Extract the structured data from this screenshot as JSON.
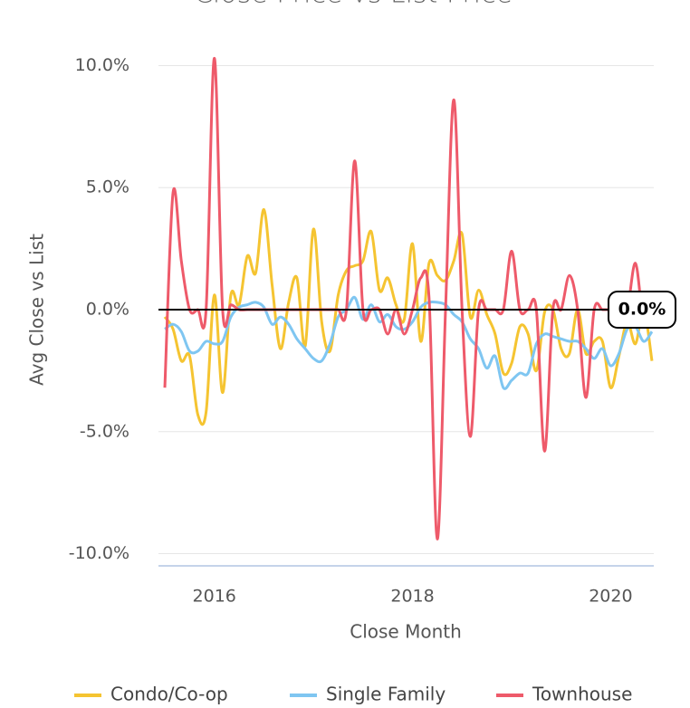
{
  "chart_data": {
    "type": "line",
    "title": "Close Price vs List Price",
    "xlabel": "Close Month",
    "ylabel": "Avg Close vs List",
    "x": [
      "2015-07",
      "2015-08",
      "2015-09",
      "2015-10",
      "2015-11",
      "2015-12",
      "2016-01",
      "2016-02",
      "2016-03",
      "2016-04",
      "2016-05",
      "2016-06",
      "2016-07",
      "2016-08",
      "2016-09",
      "2016-10",
      "2016-11",
      "2016-12",
      "2017-01",
      "2017-02",
      "2017-03",
      "2017-04",
      "2017-05",
      "2017-06",
      "2017-07",
      "2017-08",
      "2017-09",
      "2017-10",
      "2017-11",
      "2017-12",
      "2018-01",
      "2018-02",
      "2018-03",
      "2018-04",
      "2018-05",
      "2018-06",
      "2018-07",
      "2018-08",
      "2018-09",
      "2018-10",
      "2018-11",
      "2018-12",
      "2019-01",
      "2019-02",
      "2019-03",
      "2019-04",
      "2019-05",
      "2019-06",
      "2019-07",
      "2019-08",
      "2019-09",
      "2019-10",
      "2019-11",
      "2019-12",
      "2020-01",
      "2020-02",
      "2020-03",
      "2020-04",
      "2020-05",
      "2020-06"
    ],
    "series": [
      {
        "name": "Condo/Co-op",
        "color": "#f5c431",
        "values": [
          -0.3,
          -0.8,
          -2.1,
          -1.9,
          -4.3,
          -4.2,
          0.6,
          -3.4,
          0.6,
          0.2,
          2.2,
          1.5,
          4.1,
          1.0,
          -1.6,
          0.3,
          1.3,
          -1.5,
          3.3,
          -0.5,
          -1.7,
          0.6,
          1.6,
          1.8,
          2.0,
          3.2,
          0.8,
          1.3,
          0.2,
          -0.4,
          2.7,
          -1.3,
          1.9,
          1.4,
          1.2,
          2.0,
          3.1,
          -0.3,
          0.8,
          -0.2,
          -1.0,
          -2.6,
          -2.2,
          -0.7,
          -1.0,
          -2.5,
          -0.1,
          0.0,
          -1.6,
          -1.8,
          0.0,
          -1.8,
          -1.3,
          -1.3,
          -3.2,
          -1.9,
          -0.5,
          -1.4,
          0.0,
          -2.1
        ]
      },
      {
        "name": "Single Family",
        "color": "#7fc6f1",
        "values": [
          -0.8,
          -0.6,
          -0.9,
          -1.7,
          -1.7,
          -1.3,
          -1.4,
          -1.3,
          -0.3,
          0.1,
          0.2,
          0.3,
          0.1,
          -0.6,
          -0.3,
          -0.6,
          -1.2,
          -1.6,
          -2.0,
          -2.1,
          -1.4,
          -0.3,
          0.0,
          0.5,
          -0.4,
          0.2,
          -0.5,
          -0.2,
          -0.7,
          -0.8,
          -0.5,
          0.1,
          0.3,
          0.3,
          0.2,
          -0.2,
          -0.5,
          -1.2,
          -1.6,
          -2.4,
          -1.9,
          -3.2,
          -2.9,
          -2.6,
          -2.6,
          -1.4,
          -1.0,
          -1.1,
          -1.2,
          -1.3,
          -1.3,
          -1.6,
          -2.0,
          -1.6,
          -2.3,
          -1.8,
          -0.8,
          -0.7,
          -1.3,
          -0.9
        ]
      },
      {
        "name": "Townhouse",
        "color": "#ee5a6a",
        "values": [
          -3.2,
          4.8,
          2.0,
          0,
          0,
          0,
          10.3,
          0,
          0.2,
          0,
          0,
          0,
          0,
          0,
          0,
          0,
          0,
          0,
          0,
          0,
          0,
          0,
          0,
          6.1,
          0,
          0,
          0,
          -1.0,
          0,
          -1.0,
          0,
          1.3,
          0.5,
          -9.4,
          0,
          8.6,
          0,
          -5.2,
          0,
          0,
          0,
          0,
          2.4,
          0,
          0,
          0,
          -5.8,
          0,
          0,
          1.4,
          0,
          -3.6,
          0,
          0,
          0,
          0,
          0,
          1.9,
          -0.5,
          0
        ]
      }
    ],
    "xlim": [
      "2015-07",
      "2020-06"
    ],
    "xticks": [
      2016,
      2018,
      2020
    ],
    "ylim": [
      -10.5,
      10.5
    ],
    "yticks": [
      {
        "value": -10,
        "label": "-10.0%"
      },
      {
        "value": -5,
        "label": "-5.0%"
      },
      {
        "value": 0,
        "label": "0.0%"
      },
      {
        "value": 5,
        "label": "5.0%"
      },
      {
        "value": 10,
        "label": "10.0%"
      }
    ],
    "grid": true,
    "legend": "bottom",
    "reference_line": {
      "value": 0,
      "label": "0.0%"
    }
  }
}
